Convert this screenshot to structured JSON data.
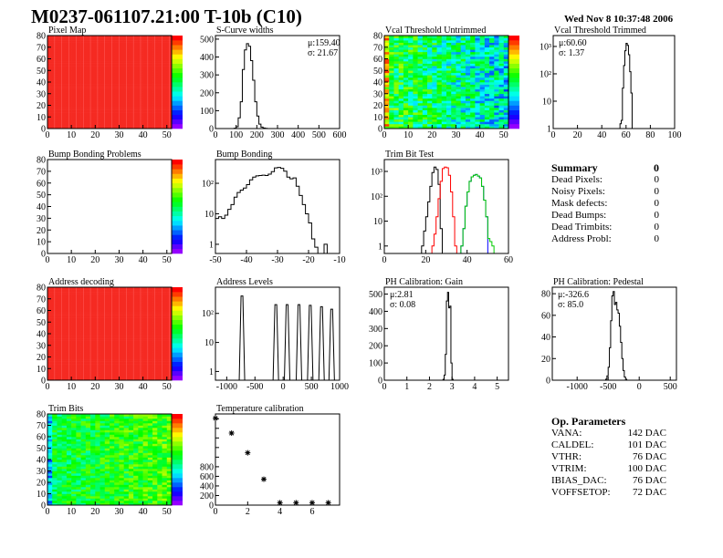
{
  "header": {
    "title": "M0237-061107.21:00 T-10b (C10)",
    "date": "Wed Nov  8 10:37:48 2006"
  },
  "summary": {
    "title": "Summary",
    "total": "0",
    "rows": [
      {
        "label": "Dead Pixels:",
        "value": "0"
      },
      {
        "label": "Noisy Pixels:",
        "value": "0"
      },
      {
        "label": "Mask defects:",
        "value": "0"
      },
      {
        "label": "Dead Bumps:",
        "value": "0"
      },
      {
        "label": "Dead Trimbits:",
        "value": "0"
      },
      {
        "label": "Address Probl:",
        "value": "0"
      }
    ]
  },
  "op_parameters": {
    "title": "Op. Parameters",
    "rows": [
      {
        "label": "VANA:",
        "value": "142 DAC"
      },
      {
        "label": "CALDEL:",
        "value": "101 DAC"
      },
      {
        "label": "VTHR:",
        "value": "76 DAC"
      },
      {
        "label": "VTRIM:",
        "value": "100 DAC"
      },
      {
        "label": "IBIAS_DAC:",
        "value": "76 DAC"
      },
      {
        "label": "VOFFSETOP:",
        "value": "72 DAC"
      }
    ]
  },
  "chart_data": [
    {
      "key": "pixel-map",
      "type": "heatmap",
      "title": "Pixel Map",
      "xlim": [
        0,
        52
      ],
      "ylim": [
        0,
        80
      ],
      "zlim": [
        0,
        10
      ],
      "cells": "uniform",
      "uniform_value": 10,
      "colormap": "rainbow",
      "xticks": [
        "0",
        "10",
        "20",
        "30",
        "40",
        "50"
      ],
      "yticks": [
        "0",
        "10",
        "20",
        "30",
        "40",
        "50",
        "60",
        "70",
        "80"
      ]
    },
    {
      "key": "s-curve-widths",
      "type": "histogram",
      "title": "S-Curve widths",
      "xlim": [
        0,
        600
      ],
      "ylim": [
        0,
        520
      ],
      "ylog": false,
      "xticks": [
        "0",
        "100",
        "200",
        "300",
        "400",
        "500",
        "600"
      ],
      "yticks": [
        "0",
        "100",
        "200",
        "300",
        "400",
        "500"
      ],
      "stats": [
        "μ:159.40",
        "σ: 21.67"
      ],
      "series": [
        {
          "color": "#000000",
          "x_start": 90,
          "bin_width": 10,
          "values": [
            2,
            10,
            60,
            150,
            330,
            440,
            475,
            460,
            380,
            270,
            150,
            70,
            25,
            8,
            3,
            1
          ]
        }
      ]
    },
    {
      "key": "vcal-threshold-untrimmed",
      "type": "heatmap",
      "title": "Vcal Threshold Untrimmed",
      "xlim": [
        0,
        52
      ],
      "ylim": [
        0,
        80
      ],
      "zlim": [
        85,
        130
      ],
      "cells": "noisy",
      "colormap": "rainbow",
      "xticks": [
        "0",
        "10",
        "20",
        "30",
        "40",
        "50"
      ],
      "yticks": [
        "0",
        "10",
        "20",
        "30",
        "40",
        "50",
        "60",
        "70",
        "80"
      ]
    },
    {
      "key": "vcal-threshold-trimmed",
      "type": "histogram",
      "title": "Vcal Threshold Trimmed",
      "xlim": [
        0,
        100
      ],
      "ylim": [
        1,
        2500
      ],
      "ylog": true,
      "xticks": [
        "0",
        "20",
        "40",
        "60",
        "80",
        "100"
      ],
      "yticks": [
        "1",
        "10",
        "10²",
        "10³"
      ],
      "stats": [
        "μ:60.60",
        "σ: 1.37"
      ],
      "series": [
        {
          "color": "#000000",
          "x_start": 55,
          "bin_width": 1,
          "values": [
            1.5,
            2,
            30,
            200,
            700,
            1300,
            1100,
            500,
            120,
            20
          ]
        }
      ]
    },
    {
      "key": "bump-bonding-problems",
      "type": "heatmap",
      "title": "Bump Bonding Problems",
      "xlim": [
        0,
        52
      ],
      "ylim": [
        0,
        80
      ],
      "zlim": [
        0,
        2
      ],
      "cells": "empty",
      "colormap": "rainbow",
      "xticks": [
        "0",
        "10",
        "20",
        "30",
        "40",
        "50"
      ],
      "yticks": [
        "0",
        "10",
        "20",
        "30",
        "40",
        "50",
        "60",
        "70",
        "80"
      ]
    },
    {
      "key": "bump-bonding",
      "type": "histogram",
      "title": "Bump Bonding",
      "xlim": [
        -50,
        -10
      ],
      "ylim": [
        0.5,
        600
      ],
      "ylog": true,
      "xticks": [
        "-50",
        "-40",
        "-30",
        "-20",
        "-10"
      ],
      "yticks": [
        "1",
        "10",
        "10²"
      ],
      "series": [
        {
          "color": "#000000",
          "x_start": -50,
          "bin_width": 1,
          "values": [
            7,
            8,
            7,
            9,
            14,
            20,
            35,
            50,
            60,
            70,
            90,
            130,
            160,
            175,
            180,
            185,
            180,
            200,
            240,
            320,
            330,
            310,
            250,
            160,
            140,
            150,
            80,
            40,
            20,
            10,
            5,
            1.5,
            0.8,
            0,
            0,
            1
          ]
        }
      ]
    },
    {
      "key": "trim-bit-test",
      "type": "histogram",
      "title": "Trim Bit Test",
      "xlim": [
        0,
        60
      ],
      "ylim": [
        0.5,
        3000
      ],
      "ylog": true,
      "xticks": [
        "0",
        "20",
        "40",
        "60"
      ],
      "yticks": [
        "1",
        "10",
        "10²",
        "10³"
      ],
      "series": [
        {
          "color": "#000000",
          "x_start": 17,
          "bin_width": 1,
          "values": [
            0.5,
            1,
            4,
            15,
            60,
            250,
            900,
            1500,
            1200,
            300,
            5,
            0.5
          ]
        },
        {
          "color": "#ff0000",
          "x_start": 22,
          "bin_width": 1,
          "values": [
            0.5,
            1,
            3,
            15,
            80,
            400,
            1300,
            1500,
            1400,
            700,
            150,
            15,
            1,
            0.5
          ]
        },
        {
          "color": "#0000ff",
          "x_start": 36,
          "bin_width": 1,
          "values": [
            0.5,
            1,
            5,
            40,
            150,
            400,
            600,
            700,
            750,
            650,
            550,
            250,
            70,
            15,
            0.5
          ]
        },
        {
          "color": "#00cc00",
          "x_start": 36,
          "bin_width": 1,
          "values": [
            0.5,
            1,
            5,
            40,
            150,
            400,
            600,
            700,
            750,
            650,
            550,
            250,
            70,
            15,
            2,
            1.5,
            1,
            0.5
          ]
        }
      ]
    },
    {
      "key": "address-decoding",
      "type": "heatmap",
      "title": "Address decoding",
      "xlim": [
        0,
        52
      ],
      "ylim": [
        0,
        80
      ],
      "zlim": [
        0,
        1
      ],
      "cells": "uniform",
      "uniform_value": 1,
      "colormap": "rainbow",
      "xticks": [
        "0",
        "10",
        "20",
        "30",
        "40",
        "50"
      ],
      "yticks": [
        "0",
        "10",
        "20",
        "30",
        "40",
        "50",
        "60",
        "70",
        "80"
      ]
    },
    {
      "key": "address-levels",
      "type": "peaks",
      "title": "Address Levels",
      "xlim": [
        -1200,
        1000
      ],
      "ylim": [
        0.5,
        800
      ],
      "ylog": true,
      "xticks": [
        "-1000",
        "-500",
        "0",
        "500",
        "1000"
      ],
      "yticks": [
        "1",
        "10",
        "10²"
      ],
      "peaks": [
        {
          "x": -730,
          "y": 400
        },
        {
          "x": -130,
          "y": 200
        },
        {
          "x": 70,
          "y": 200
        },
        {
          "x": 280,
          "y": 200
        },
        {
          "x": 480,
          "y": 190
        },
        {
          "x": 680,
          "y": 170
        },
        {
          "x": 860,
          "y": 140
        }
      ]
    },
    {
      "key": "ph-calibration-gain",
      "type": "histogram",
      "title": "PH Calibration: Gain",
      "xlim": [
        0,
        5.5
      ],
      "ylim": [
        0,
        540
      ],
      "ylog": false,
      "xticks": [
        "0",
        "1",
        "2",
        "3",
        "4",
        "5"
      ],
      "yticks": [
        "0",
        "100",
        "200",
        "300",
        "400",
        "500"
      ],
      "stats": [
        "μ:2.81",
        "σ: 0.08"
      ],
      "series": [
        {
          "color": "#000000",
          "x_start": 2.6,
          "bin_width": 0.05,
          "values": [
            5,
            30,
            150,
            460,
            510,
            420,
            430,
            100,
            5
          ]
        }
      ]
    },
    {
      "key": "ph-calibration-pedestal",
      "type": "histogram",
      "title": "PH Calibration: Pedestal",
      "xlim": [
        -1400,
        600
      ],
      "ylim": [
        0,
        86
      ],
      "ylog": false,
      "xticks": [
        "-1000",
        "-500",
        "0",
        "500"
      ],
      "yticks": [
        "0",
        "20",
        "40",
        "60",
        "80"
      ],
      "stats": [
        "μ:-326.6",
        "σ: 85.0"
      ],
      "series": [
        {
          "color": "#000000",
          "x_start": -560,
          "bin_width": 20,
          "values": [
            0,
            1,
            4,
            12,
            30,
            55,
            78,
            82,
            70,
            72,
            65,
            62,
            50,
            35,
            20,
            9,
            3,
            1,
            0
          ]
        }
      ]
    },
    {
      "key": "trim-bits",
      "type": "heatmap",
      "title": "Trim Bits",
      "xlim": [
        0,
        52
      ],
      "ylim": [
        0,
        80
      ],
      "zlim": [
        0,
        16
      ],
      "cells": "noisy",
      "colormap": "rainbow",
      "xticks": [
        "0",
        "10",
        "20",
        "30",
        "40",
        "50"
      ],
      "yticks": [
        "0",
        "10",
        "20",
        "30",
        "40",
        "50",
        "60",
        "70",
        "80"
      ]
    },
    {
      "key": "temperature-calibration",
      "type": "scatter",
      "title": "Temperature calibration",
      "xlim": [
        0,
        7.7
      ],
      "ylim": [
        0,
        1900
      ],
      "ylog": false,
      "xticks": [
        "0",
        "2",
        "4",
        "6"
      ],
      "yticks": [
        "0",
        "200",
        "400",
        "600",
        "800"
      ],
      "x": [
        0,
        1,
        2,
        3,
        4,
        5,
        6,
        7
      ],
      "y": [
        1810,
        1500,
        1090,
        540,
        50,
        50,
        50,
        50
      ]
    }
  ]
}
